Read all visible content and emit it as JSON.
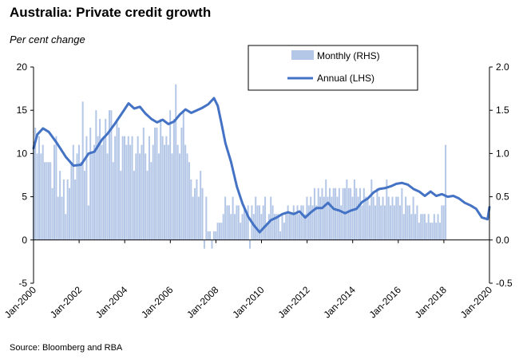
{
  "header": {
    "title": "Australia: Private credit growth",
    "subtitle": "Per cent change",
    "source": "Source: Bloomberg and RBA"
  },
  "colors": {
    "bars": "#b4c7e7",
    "line": "#4472c4",
    "axis": "#000000"
  },
  "chart_data": {
    "type": "bar",
    "title": "Australia: Private credit growth",
    "subtitle": "Per cent change",
    "xlabel": "",
    "ylabel": "",
    "x_ticks": [
      "Jan-2000",
      "Jan-2002",
      "Jan-2004",
      "Jan-2006",
      "Jan-2008",
      "Jan-2010",
      "Jan-2012",
      "Jan-2014",
      "Jan-2016",
      "Jan-2018",
      "Jan-2020"
    ],
    "y_left": {
      "lim": [
        -5,
        20
      ],
      "ticks": [
        "-5",
        "0",
        "5",
        "10",
        "15",
        "20"
      ]
    },
    "y_right": {
      "lim": [
        -0.5,
        2.0
      ],
      "ticks": [
        "-0.5",
        "0.0",
        "0.5",
        "1.0",
        "1.5",
        "2.0"
      ]
    },
    "legend_position": "top-center",
    "series": [
      {
        "name": "Monthly (RHS)",
        "type": "bar",
        "axis": "right",
        "x_start": "2000-01",
        "frequency": "monthly",
        "values": [
          1.1,
          1.3,
          1.0,
          1.2,
          1.0,
          1.1,
          0.9,
          0.9,
          0.9,
          0.9,
          0.6,
          1.1,
          1.2,
          0.5,
          0.8,
          0.5,
          0.7,
          0.3,
          0.7,
          0.6,
          0.9,
          1.1,
          0.7,
          1.0,
          1.1,
          0.9,
          1.6,
          0.8,
          1.2,
          0.4,
          1.3,
          1.0,
          1.1,
          1.5,
          1.2,
          1.4,
          1.1,
          1.2,
          1.4,
          1.0,
          1.5,
          1.5,
          0.9,
          1.2,
          1.4,
          1.3,
          0.8,
          1.2,
          1.2,
          1.1,
          1.2,
          1.1,
          1.2,
          0.8,
          1.0,
          1.2,
          1.0,
          1.1,
          1.3,
          1.0,
          0.8,
          1.2,
          0.9,
          1.1,
          1.3,
          1.3,
          1.0,
          1.4,
          1.2,
          1.1,
          1.2,
          1.1,
          1.5,
          1.0,
          1.4,
          1.8,
          1.1,
          1.0,
          1.3,
          1.5,
          1.1,
          1.0,
          0.9,
          0.7,
          0.5,
          0.6,
          0.7,
          0.5,
          0.8,
          0.6,
          -0.1,
          0.5,
          0.1,
          0.1,
          -0.1,
          0.1,
          0.1,
          0.2,
          0.2,
          0.2,
          0.3,
          0.5,
          0.4,
          0.4,
          0.3,
          0.5,
          0.3,
          0.4,
          0.4,
          0.2,
          0.3,
          0.4,
          0.3,
          0.4,
          -0.1,
          0.4,
          0.3,
          0.5,
          0.4,
          0.4,
          0.3,
          0.4,
          0.5,
          0.2,
          0.3,
          0.5,
          0.4,
          0.3,
          0.3,
          0.3,
          0.1,
          0.3,
          0.2,
          0.3,
          0.4,
          0.3,
          0.3,
          0.4,
          0.3,
          0.4,
          0.3,
          0.4,
          0.4,
          0.3,
          0.5,
          0.4,
          0.5,
          0.4,
          0.6,
          0.4,
          0.6,
          0.5,
          0.6,
          0.5,
          0.7,
          0.5,
          0.6,
          0.5,
          0.6,
          0.6,
          0.5,
          0.6,
          0.4,
          0.6,
          0.6,
          0.7,
          0.6,
          0.6,
          0.5,
          0.7,
          0.6,
          0.5,
          0.6,
          0.4,
          0.6,
          0.5,
          0.5,
          0.4,
          0.7,
          0.5,
          0.4,
          0.6,
          0.5,
          0.4,
          0.5,
          0.4,
          0.7,
          0.5,
          0.4,
          0.5,
          0.4,
          0.5,
          0.5,
          0.4,
          0.6,
          0.3,
          0.5,
          0.4,
          0.4,
          0.3,
          0.5,
          0.3,
          0.4,
          0.2,
          0.3,
          0.3,
          0.3,
          0.2,
          0.3,
          0.2,
          0.2,
          0.3,
          0.2,
          0.3,
          0.2,
          0.4,
          0.4,
          1.1
        ]
      },
      {
        "name": "Annual (LHS)",
        "type": "line",
        "axis": "left",
        "points": [
          [
            "2000-01",
            10.6
          ],
          [
            "2000-03",
            12.2
          ],
          [
            "2000-06",
            12.9
          ],
          [
            "2000-09",
            12.5
          ],
          [
            "2001-01",
            11.3
          ],
          [
            "2001-06",
            9.6
          ],
          [
            "2001-10",
            8.6
          ],
          [
            "2002-02",
            8.7
          ],
          [
            "2002-06",
            10.0
          ],
          [
            "2002-09",
            10.2
          ],
          [
            "2003-01",
            11.6
          ],
          [
            "2003-04",
            12.3
          ],
          [
            "2003-08",
            13.5
          ],
          [
            "2003-12",
            14.8
          ],
          [
            "2004-03",
            15.8
          ],
          [
            "2004-06",
            15.2
          ],
          [
            "2004-09",
            15.4
          ],
          [
            "2004-12",
            14.6
          ],
          [
            "2005-03",
            14.0
          ],
          [
            "2005-06",
            13.6
          ],
          [
            "2005-09",
            13.9
          ],
          [
            "2005-12",
            13.4
          ],
          [
            "2006-03",
            13.7
          ],
          [
            "2006-06",
            14.5
          ],
          [
            "2006-09",
            15.1
          ],
          [
            "2006-12",
            14.7
          ],
          [
            "2007-03",
            15.0
          ],
          [
            "2007-06",
            15.3
          ],
          [
            "2007-09",
            15.7
          ],
          [
            "2007-12",
            16.4
          ],
          [
            "2008-02",
            15.5
          ],
          [
            "2008-04",
            13.4
          ],
          [
            "2008-06",
            11.2
          ],
          [
            "2008-09",
            9.0
          ],
          [
            "2008-12",
            6.2
          ],
          [
            "2009-03",
            4.2
          ],
          [
            "2009-06",
            2.7
          ],
          [
            "2009-09",
            1.7
          ],
          [
            "2009-12",
            0.9
          ],
          [
            "2010-03",
            1.6
          ],
          [
            "2010-06",
            2.3
          ],
          [
            "2010-09",
            2.6
          ],
          [
            "2010-12",
            3.0
          ],
          [
            "2011-03",
            3.2
          ],
          [
            "2011-06",
            3.0
          ],
          [
            "2011-09",
            3.3
          ],
          [
            "2011-12",
            2.6
          ],
          [
            "2012-03",
            3.2
          ],
          [
            "2012-06",
            3.7
          ],
          [
            "2012-09",
            3.7
          ],
          [
            "2012-12",
            4.3
          ],
          [
            "2013-03",
            3.6
          ],
          [
            "2013-06",
            3.4
          ],
          [
            "2013-09",
            3.1
          ],
          [
            "2013-12",
            3.4
          ],
          [
            "2014-03",
            3.6
          ],
          [
            "2014-06",
            4.4
          ],
          [
            "2014-09",
            4.8
          ],
          [
            "2014-12",
            5.5
          ],
          [
            "2015-03",
            5.9
          ],
          [
            "2015-06",
            6.0
          ],
          [
            "2015-09",
            6.2
          ],
          [
            "2015-12",
            6.5
          ],
          [
            "2016-03",
            6.6
          ],
          [
            "2016-06",
            6.4
          ],
          [
            "2016-09",
            5.9
          ],
          [
            "2016-12",
            5.6
          ],
          [
            "2017-03",
            5.1
          ],
          [
            "2017-06",
            5.6
          ],
          [
            "2017-09",
            5.1
          ],
          [
            "2017-12",
            5.3
          ],
          [
            "2018-03",
            5.0
          ],
          [
            "2018-06",
            5.1
          ],
          [
            "2018-09",
            4.8
          ],
          [
            "2018-12",
            4.3
          ],
          [
            "2019-03",
            4.0
          ],
          [
            "2019-06",
            3.6
          ],
          [
            "2019-09",
            2.6
          ],
          [
            "2019-12",
            2.4
          ],
          [
            "2020-01",
            3.8
          ]
        ]
      }
    ]
  }
}
